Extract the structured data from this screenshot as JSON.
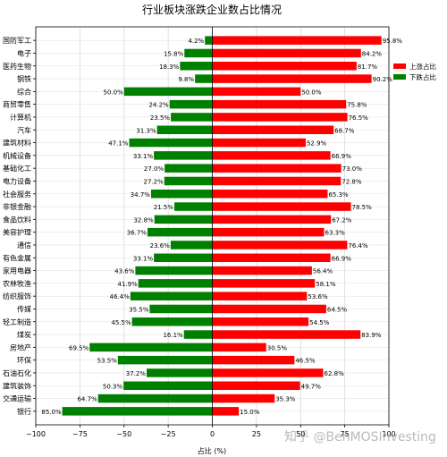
{
  "chart_data": {
    "type": "bar",
    "orientation": "horizontal-diverging",
    "title": "行业板块涨跌企业数占比情况",
    "xlabel": "占比 (%)",
    "ylabel": "",
    "xlim": [
      -100,
      100
    ],
    "xticks": [
      -100,
      -75,
      -50,
      -25,
      0,
      25,
      50,
      75,
      100
    ],
    "xtick_labels": [
      "−100",
      "−75",
      "−50",
      "−25",
      "0",
      "25",
      "50",
      "75",
      "100"
    ],
    "grid": true,
    "legend": "right",
    "categories": [
      "国防军工",
      "电子",
      "医药生物",
      "钢铁",
      "综合",
      "商贸零售",
      "计算机",
      "汽车",
      "建筑材料",
      "机械设备",
      "基础化工",
      "电力设备",
      "社会服务",
      "非银金融",
      "食品饮料",
      "美容护理",
      "通信",
      "有色金属",
      "家用电器",
      "农林牧渔",
      "纺织服饰",
      "传媒",
      "轻工制造",
      "煤炭",
      "房地产",
      "环保",
      "石油石化",
      "建筑装饰",
      "交通运输",
      "银行"
    ],
    "series": [
      {
        "name": "上涨占比",
        "color": "#ff0000",
        "values": [
          95.8,
          84.2,
          81.7,
          90.2,
          50.0,
          75.8,
          76.5,
          68.7,
          52.9,
          66.9,
          73.0,
          72.8,
          65.3,
          78.5,
          67.2,
          63.3,
          76.4,
          66.9,
          56.4,
          58.1,
          53.6,
          64.5,
          54.5,
          83.9,
          30.5,
          46.5,
          62.8,
          49.7,
          35.3,
          15.0
        ],
        "labels": [
          "95.8%",
          "84.2%",
          "81.7%",
          "90.2%",
          "50.0%",
          "75.8%",
          "76.5%",
          "68.7%",
          "52.9%",
          "66.9%",
          "73.0%",
          "72.8%",
          "65.3%",
          "78.5%",
          "67.2%",
          "63.3%",
          "76.4%",
          "66.9%",
          "56.4%",
          "58.1%",
          "53.6%",
          "64.5%",
          "54.5%",
          "83.9%",
          "30.5%",
          "46.5%",
          "62.8%",
          "49.7%",
          "35.3%",
          "15.0%"
        ]
      },
      {
        "name": "下跌占比",
        "color": "#008000",
        "values": [
          4.2,
          15.8,
          18.3,
          9.8,
          50.0,
          24.2,
          23.5,
          31.3,
          47.1,
          33.1,
          27.0,
          27.2,
          34.7,
          21.5,
          32.8,
          36.7,
          23.6,
          33.1,
          43.6,
          41.9,
          46.4,
          35.5,
          45.5,
          16.1,
          69.5,
          53.5,
          37.2,
          50.3,
          64.7,
          85.0
        ],
        "labels": [
          "4.2%",
          "15.8%",
          "18.3%",
          "9.8%",
          "50.0%",
          "24.2%",
          "23.5%",
          "31.3%",
          "47.1%",
          "33.1%",
          "27.0%",
          "27.2%",
          "34.7%",
          "21.5%",
          "32.8%",
          "36.7%",
          "23.6%",
          "33.1%",
          "43.6%",
          "41.9%",
          "46.4%",
          "35.5%",
          "45.5%",
          "16.1%",
          "69.5%",
          "53.5%",
          "37.2%",
          "50.3%",
          "64.7%",
          "85.0%"
        ]
      }
    ]
  },
  "watermark": "知乎 @BenMOSInvesting"
}
